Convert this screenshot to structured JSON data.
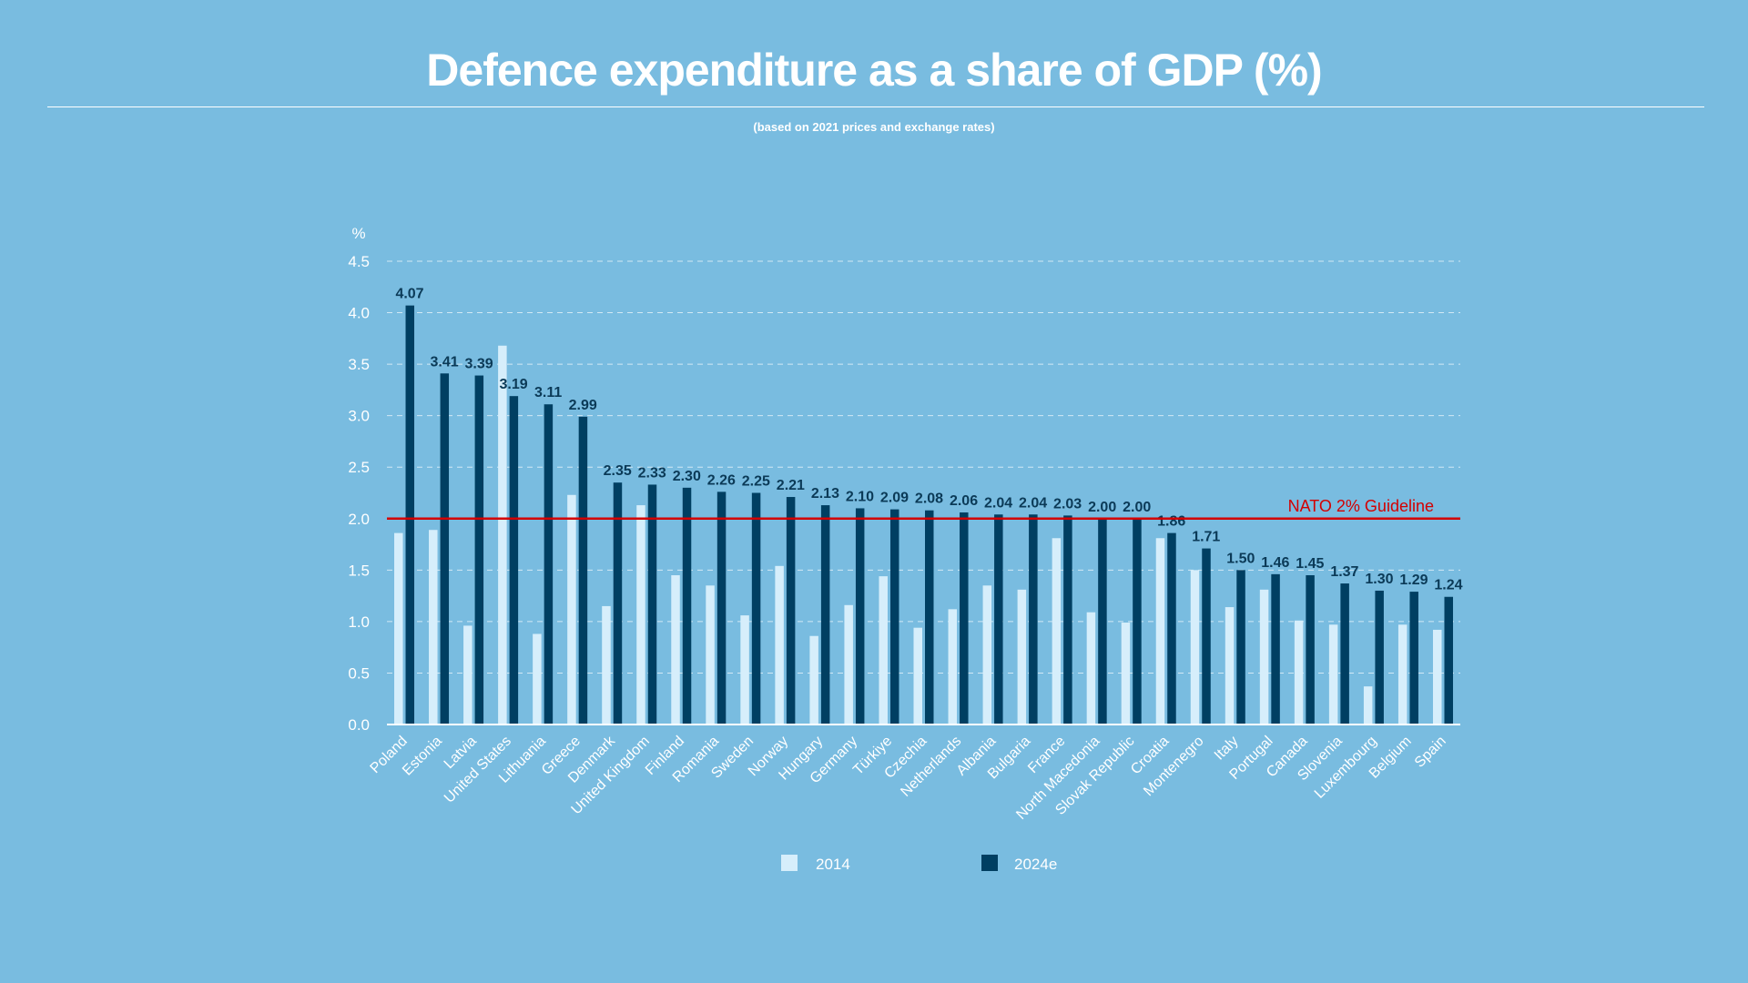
{
  "title": "Defence expenditure as a share of GDP (%)",
  "subtitle": "(based on 2021 prices and exchange rates)",
  "colors": {
    "background": "#79bce0",
    "series_2014": "#d6eefb",
    "series_2024e": "#003f62",
    "guideline": "#d40000",
    "labels": "#0b3a57"
  },
  "chart_data": {
    "type": "bar",
    "title": "Defence expenditure as a share of GDP (%)",
    "subtitle": "(based on 2021 prices and exchange rates)",
    "ylabel": "%",
    "ylim": [
      0,
      4.5
    ],
    "yticks": [
      "0.0",
      "0.5",
      "1.0",
      "1.5",
      "2.0",
      "2.5",
      "3.0",
      "3.5",
      "4.0",
      "4.5"
    ],
    "grid": "horizontal dashed",
    "legend": "bottom",
    "categories": [
      "Poland",
      "Estonia",
      "Latvia",
      "United States",
      "Lithuania",
      "Greece",
      "Denmark",
      "United Kingdom",
      "Finland",
      "Romania",
      "Sweden",
      "Norway",
      "Hungary",
      "Germany",
      "Türkiye",
      "Czechia",
      "Netherlands",
      "Albania",
      "Bulgaria",
      "France",
      "North Macedonia",
      "Slovak Republic",
      "Croatia",
      "Montenegro",
      "Italy",
      "Portugal",
      "Canada",
      "Slovenia",
      "Luxembourg",
      "Belgium",
      "Spain"
    ],
    "series": [
      {
        "name": "2014",
        "values": [
          1.86,
          1.89,
          0.96,
          3.68,
          0.88,
          2.23,
          1.15,
          2.13,
          1.45,
          1.35,
          1.06,
          1.54,
          0.86,
          1.16,
          1.44,
          0.94,
          1.12,
          1.35,
          1.31,
          1.81,
          1.09,
          0.99,
          1.81,
          1.5,
          1.14,
          1.31,
          1.01,
          0.97,
          0.37,
          0.97,
          0.92
        ]
      },
      {
        "name": "2024e",
        "values": [
          4.07,
          3.41,
          3.39,
          3.19,
          3.11,
          2.99,
          2.35,
          2.33,
          2.3,
          2.26,
          2.25,
          2.21,
          2.13,
          2.1,
          2.09,
          2.08,
          2.06,
          2.04,
          2.04,
          2.03,
          2.0,
          2.0,
          1.86,
          1.71,
          1.5,
          1.46,
          1.45,
          1.37,
          1.3,
          1.29,
          1.24
        ],
        "labels": [
          "4.07",
          "3.41",
          "3.39",
          "3.19",
          "3.11",
          "2.99",
          "2.35",
          "2.33",
          "2.30",
          "2.26",
          "2.25",
          "2.21",
          "2.13",
          "2.10",
          "2.09",
          "2.08",
          "2.06",
          "2.04",
          "2.04",
          "2.03",
          "2.00",
          "2.00",
          "1.86",
          "1.71",
          "1.50",
          "1.46",
          "1.45",
          "1.37",
          "1.30",
          "1.29",
          "1.24"
        ]
      }
    ],
    "annotations": [
      {
        "text": "NATO 2% Guideline",
        "y": 2.0
      }
    ]
  }
}
